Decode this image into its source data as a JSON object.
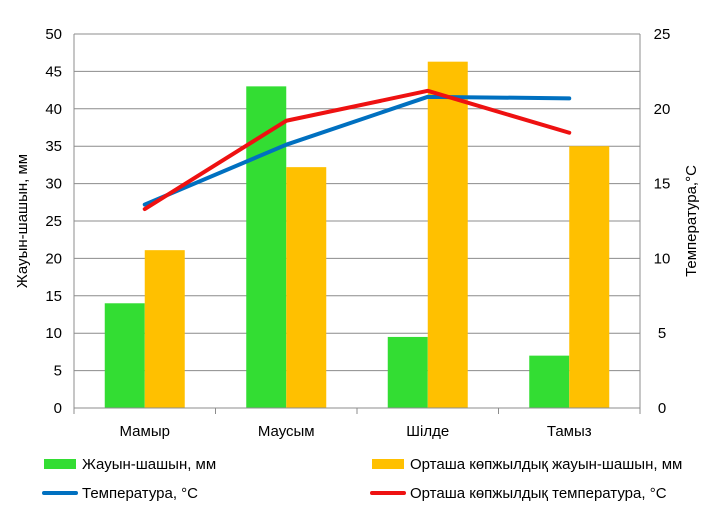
{
  "chart_data": {
    "type": "bar",
    "categories": [
      "Мамыр",
      "Маусым",
      "Шілде",
      "Тамыз"
    ],
    "series": [
      {
        "name": "Жауын-шашын, мм",
        "kind": "bar",
        "axis": "left",
        "color": "#33dd33",
        "values": [
          14,
          43,
          9.5,
          7
        ]
      },
      {
        "name": "Орташа көпжылдық жауын-шашын, мм",
        "kind": "bar",
        "axis": "left",
        "color": "#ffc000",
        "values": [
          21.1,
          32.2,
          46.3,
          35
        ]
      },
      {
        "name": "Температура, °С",
        "kind": "line",
        "axis": "right",
        "color": "#0070c0",
        "values": [
          13.6,
          17.6,
          20.8,
          20.7
        ]
      },
      {
        "name": "Орташа көпжылдық температура, °С",
        "kind": "line",
        "axis": "right",
        "color": "#ee1111",
        "values": [
          13.3,
          19.2,
          21.2,
          18.4
        ]
      }
    ],
    "title": "",
    "xlabel": "",
    "ylabel": "Жауын-шашын, мм",
    "y2label": "Температура,°С",
    "ylim": [
      0,
      50
    ],
    "yticks": [
      "0",
      "5",
      "10",
      "15",
      "20",
      "25",
      "30",
      "35",
      "40",
      "45",
      "50"
    ],
    "y2lim": [
      0,
      25
    ],
    "y2ticks": [
      "0",
      "5",
      "10",
      "15",
      "20",
      "25"
    ],
    "grid": true,
    "legend": "bottom"
  }
}
